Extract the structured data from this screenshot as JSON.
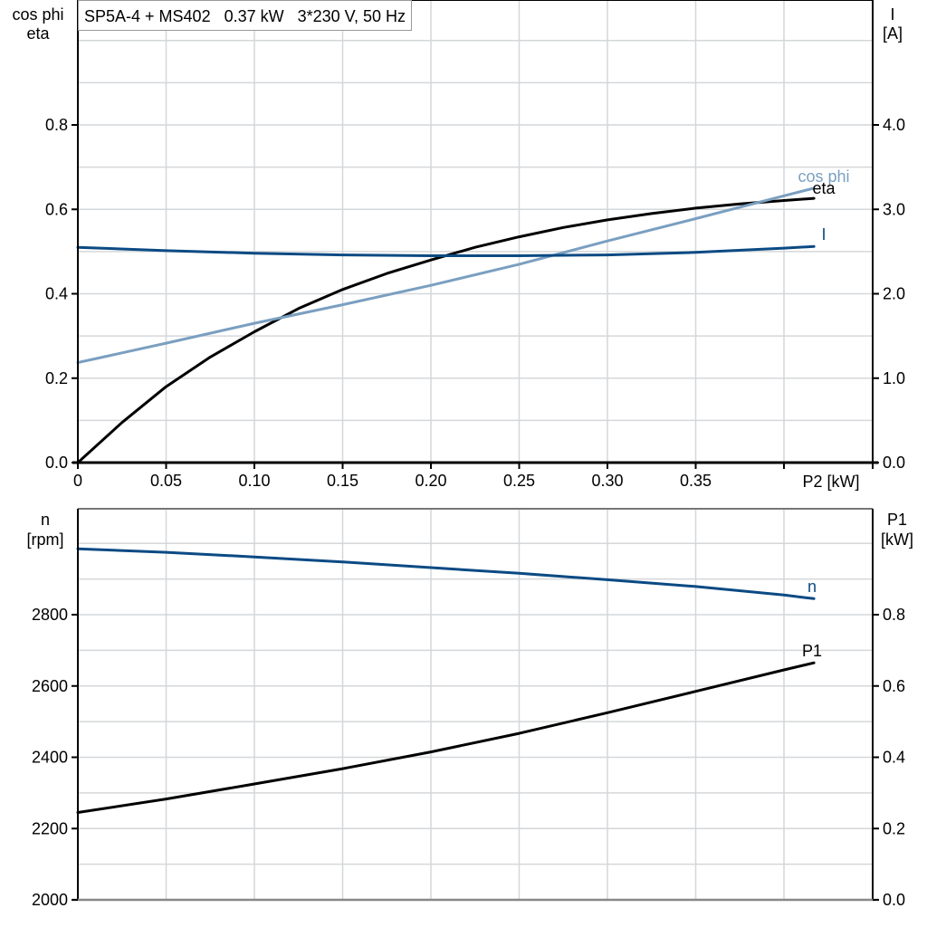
{
  "title": "SP5A-4 + MS402   0.37 kW   3*230 V, 50 Hz",
  "colors": {
    "eta": "#000000",
    "cos_phi": "#7a9fc0",
    "current": "#0b4a84",
    "speed": "#0b4a84",
    "p1": "#000000",
    "grid": "#d4d7da",
    "axis": "#000000"
  },
  "top_chart": {
    "left_axis_title_line1": "cos phi",
    "left_axis_title_line2": "eta",
    "right_axis_title_line1": "I",
    "right_axis_title_line2": "[A]",
    "x_axis_title": "P2 [kW]",
    "x_ticks": [
      "0",
      "0.05",
      "0.10",
      "0.15",
      "0.20",
      "0.25",
      "0.30",
      "0.35"
    ],
    "left_ticks": [
      "0.0",
      "0.2",
      "0.4",
      "0.6",
      "0.8"
    ],
    "right_ticks": [
      "0.0",
      "1.0",
      "2.0",
      "3.0",
      "4.0"
    ],
    "labels": {
      "cos_phi": "cos phi",
      "eta": "eta",
      "current": "I"
    }
  },
  "bottom_chart": {
    "left_axis_title_line1": "n",
    "left_axis_title_line2": "[rpm]",
    "right_axis_title_line1": "P1",
    "right_axis_title_line2": "[kW]",
    "left_ticks": [
      "2000",
      "2200",
      "2400",
      "2600",
      "2800"
    ],
    "right_ticks": [
      "0.0",
      "0.2",
      "0.4",
      "0.6",
      "0.8"
    ],
    "labels": {
      "speed": "n",
      "p1": "P1"
    }
  },
  "chart_data": [
    {
      "type": "line",
      "title": "SP5A-4 + MS402   0.37 kW   3*230 V, 50 Hz",
      "xlabel": "P2 [kW]",
      "ylabel": "cos phi / eta",
      "ylabel_right": "I [A]",
      "xlim": [
        0,
        0.45
      ],
      "ylim": [
        0,
        1.0
      ],
      "ylim_right": [
        0,
        5.0
      ],
      "grid": true,
      "series": [
        {
          "name": "eta",
          "axis": "left",
          "x": [
            0,
            0.025,
            0.05,
            0.075,
            0.1,
            0.125,
            0.15,
            0.175,
            0.2,
            0.225,
            0.25,
            0.275,
            0.3,
            0.325,
            0.35,
            0.375,
            0.4,
            0.417
          ],
          "y": [
            0.0,
            0.095,
            0.18,
            0.25,
            0.31,
            0.365,
            0.41,
            0.448,
            0.48,
            0.51,
            0.535,
            0.557,
            0.575,
            0.59,
            0.603,
            0.613,
            0.621,
            0.626
          ]
        },
        {
          "name": "cos phi",
          "axis": "left",
          "x": [
            0,
            0.05,
            0.1,
            0.15,
            0.2,
            0.25,
            0.3,
            0.35,
            0.4,
            0.417
          ],
          "y": [
            0.237,
            0.283,
            0.33,
            0.374,
            0.42,
            0.47,
            0.525,
            0.578,
            0.632,
            0.65
          ]
        },
        {
          "name": "I",
          "axis": "right",
          "x": [
            0,
            0.05,
            0.1,
            0.15,
            0.2,
            0.25,
            0.3,
            0.35,
            0.4,
            0.417
          ],
          "y": [
            2.55,
            2.51,
            2.48,
            2.46,
            2.45,
            2.45,
            2.46,
            2.49,
            2.54,
            2.56
          ]
        }
      ]
    },
    {
      "type": "line",
      "xlabel": "P2 [kW]",
      "ylabel": "n [rpm]",
      "ylabel_right": "P1 [kW]",
      "xlim": [
        0,
        0.45
      ],
      "ylim": [
        2000,
        3100
      ],
      "ylim_right": [
        0,
        1.1
      ],
      "grid": true,
      "series": [
        {
          "name": "n",
          "axis": "left",
          "x": [
            0,
            0.05,
            0.1,
            0.15,
            0.2,
            0.25,
            0.3,
            0.35,
            0.4,
            0.417
          ],
          "y": [
            2985,
            2975,
            2962,
            2948,
            2932,
            2916,
            2898,
            2879,
            2855,
            2845
          ]
        },
        {
          "name": "P1",
          "axis": "right",
          "x": [
            0,
            0.05,
            0.1,
            0.15,
            0.2,
            0.25,
            0.3,
            0.35,
            0.4,
            0.417
          ],
          "y": [
            0.245,
            0.283,
            0.325,
            0.368,
            0.415,
            0.467,
            0.525,
            0.585,
            0.645,
            0.665
          ]
        }
      ]
    }
  ]
}
